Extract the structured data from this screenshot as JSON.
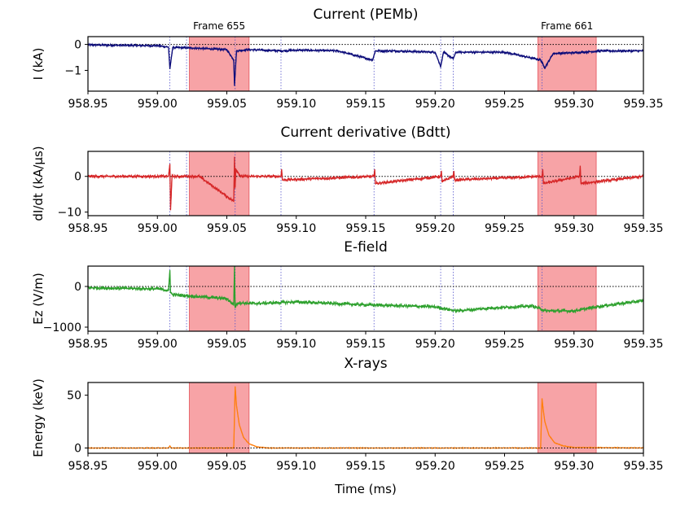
{
  "chart_data": [
    {
      "type": "line",
      "title": "Current (PEMb)",
      "ylabel": "I (kA)",
      "xlabel": "",
      "xlim": [
        958.95,
        959.35
      ],
      "ylim": [
        -1.8,
        0.3
      ],
      "yticks": [
        0,
        -1
      ],
      "ytick_labels": [
        "0",
        "−1"
      ],
      "xticks": [
        958.95,
        959.0,
        959.05,
        959.1,
        959.15,
        959.2,
        959.25,
        959.3,
        959.35
      ],
      "xtick_labels": [
        "958.95",
        "959.00",
        "959.05",
        "959.10",
        "959.15",
        "959.20",
        "959.25",
        "959.30",
        "959.35"
      ],
      "color": "#0d0d7a",
      "baseline": 0,
      "frames": [
        {
          "label": "Frame 655",
          "start": 959.023,
          "end": 959.066
        },
        {
          "label": "Frame 661",
          "start": 959.274,
          "end": 959.316
        }
      ],
      "markers": [
        959.009,
        959.021,
        959.056,
        959.089,
        959.156,
        959.204,
        959.213,
        959.277
      ],
      "series": [
        {
          "name": "Current",
          "x": [
            958.95,
            959.0,
            959.008,
            959.009,
            959.011,
            959.02,
            959.03,
            959.05,
            959.055,
            959.0555,
            959.057,
            959.065,
            959.09,
            959.1,
            959.13,
            959.155,
            959.157,
            959.17,
            959.2,
            959.204,
            959.206,
            959.213,
            959.215,
            959.25,
            959.276,
            959.279,
            959.285,
            959.3,
            959.32,
            959.35
          ],
          "y": [
            -0.02,
            -0.05,
            -0.1,
            -0.95,
            -0.12,
            -0.13,
            -0.15,
            -0.2,
            -0.6,
            -1.6,
            -0.25,
            -0.2,
            -0.25,
            -0.22,
            -0.25,
            -0.6,
            -0.25,
            -0.25,
            -0.3,
            -0.85,
            -0.3,
            -0.55,
            -0.3,
            -0.3,
            -0.6,
            -0.9,
            -0.35,
            -0.32,
            -0.25,
            -0.25
          ]
        }
      ]
    },
    {
      "type": "line",
      "title": "Current derivative (Bdtt)",
      "ylabel": "dI/dt (kA/μs)",
      "xlabel": "",
      "xlim": [
        958.95,
        959.35
      ],
      "ylim": [
        -11,
        7
      ],
      "yticks": [
        0,
        -10
      ],
      "ytick_labels": [
        "0",
        "−10"
      ],
      "xticks": [
        958.95,
        959.0,
        959.05,
        959.1,
        959.15,
        959.2,
        959.25,
        959.3,
        959.35
      ],
      "xtick_labels": [
        "958.95",
        "959.00",
        "959.05",
        "959.10",
        "959.15",
        "959.20",
        "959.25",
        "959.30",
        "959.35"
      ],
      "color": "#d62728",
      "baseline": 0,
      "frames": [
        {
          "label": "",
          "start": 959.023,
          "end": 959.066
        },
        {
          "label": "",
          "start": 959.274,
          "end": 959.316
        }
      ],
      "markers": [
        959.009,
        959.021,
        959.056,
        959.089,
        959.156,
        959.204,
        959.213,
        959.277
      ],
      "series": [
        {
          "name": "dI/dt",
          "x": [
            958.95,
            959.008,
            959.009,
            959.0095,
            959.0105,
            959.03,
            959.055,
            959.0555,
            959.056,
            959.0565,
            959.06,
            959.089,
            959.0895,
            959.09,
            959.156,
            959.1565,
            959.157,
            959.204,
            959.2045,
            959.205,
            959.213,
            959.2135,
            959.214,
            959.277,
            959.2775,
            959.278,
            959.304,
            959.3045,
            959.305,
            959.35
          ],
          "y": [
            0,
            0,
            3.5,
            -9.5,
            0,
            0,
            -7,
            5.5,
            -3,
            2,
            0,
            0,
            2,
            -1,
            0,
            2,
            -2,
            0,
            1.5,
            -1.5,
            0,
            1.5,
            -1,
            0,
            2,
            -2,
            0,
            3,
            -2,
            0
          ]
        }
      ]
    },
    {
      "type": "line",
      "title": "E-field",
      "ylabel": "Ez (V/m)",
      "xlabel": "",
      "xlim": [
        958.95,
        959.35
      ],
      "ylim": [
        -1100,
        500
      ],
      "yticks": [
        0,
        -1000
      ],
      "ytick_labels": [
        "0",
        "−1000"
      ],
      "xticks": [
        958.95,
        959.0,
        959.05,
        959.1,
        959.15,
        959.2,
        959.25,
        959.3,
        959.35
      ],
      "xtick_labels": [
        "958.95",
        "959.00",
        "959.05",
        "959.10",
        "959.15",
        "959.20",
        "959.25",
        "959.30",
        "959.35"
      ],
      "color": "#2ca02c",
      "baseline": 0,
      "frames": [
        {
          "label": "",
          "start": 959.023,
          "end": 959.066
        },
        {
          "label": "",
          "start": 959.274,
          "end": 959.316
        }
      ],
      "markers": [
        959.009,
        959.021,
        959.056,
        959.089,
        959.156,
        959.204,
        959.213,
        959.277
      ],
      "series": [
        {
          "name": "Ez",
          "x": [
            958.95,
            959.0,
            959.008,
            959.009,
            959.0095,
            959.011,
            959.03,
            959.05,
            959.055,
            959.0555,
            959.056,
            959.058,
            959.07,
            959.1,
            959.15,
            959.18,
            959.2,
            959.215,
            959.24,
            959.27,
            959.28,
            959.3,
            959.32,
            959.35
          ],
          "y": [
            -30,
            -60,
            -100,
            400,
            -150,
            -200,
            -250,
            -300,
            -450,
            500,
            -500,
            -400,
            -420,
            -380,
            -450,
            -480,
            -500,
            -600,
            -530,
            -480,
            -600,
            -600,
            -480,
            -350
          ]
        }
      ]
    },
    {
      "type": "line",
      "title": "X-rays",
      "ylabel": "Energy (keV)",
      "xlabel": "Time (ms)",
      "xlim": [
        958.95,
        959.35
      ],
      "ylim": [
        -5,
        62
      ],
      "yticks": [
        50,
        0
      ],
      "ytick_labels": [
        "50",
        "0"
      ],
      "xticks": [
        958.95,
        959.0,
        959.05,
        959.1,
        959.15,
        959.2,
        959.25,
        959.3,
        959.35
      ],
      "xtick_labels": [
        "958.95",
        "959.00",
        "959.05",
        "959.10",
        "959.15",
        "959.20",
        "959.25",
        "959.30",
        "959.35"
      ],
      "color": "#ff7f0e",
      "baseline": 0,
      "frames": [
        {
          "label": "",
          "start": 959.023,
          "end": 959.066
        },
        {
          "label": "",
          "start": 959.274,
          "end": 959.316
        }
      ],
      "markers": [],
      "series": [
        {
          "name": "X-rays",
          "x": [
            958.95,
            959.008,
            959.009,
            959.01,
            959.055,
            959.056,
            959.057,
            959.059,
            959.062,
            959.066,
            959.072,
            959.08,
            959.276,
            959.277,
            959.2775,
            959.279,
            959.282,
            959.286,
            959.292,
            959.3,
            959.35
          ],
          "y": [
            0,
            0,
            2,
            0,
            0,
            58,
            40,
            22,
            10,
            4,
            1,
            0,
            0,
            47,
            40,
            25,
            12,
            5,
            2,
            0.5,
            0
          ]
        }
      ]
    }
  ]
}
